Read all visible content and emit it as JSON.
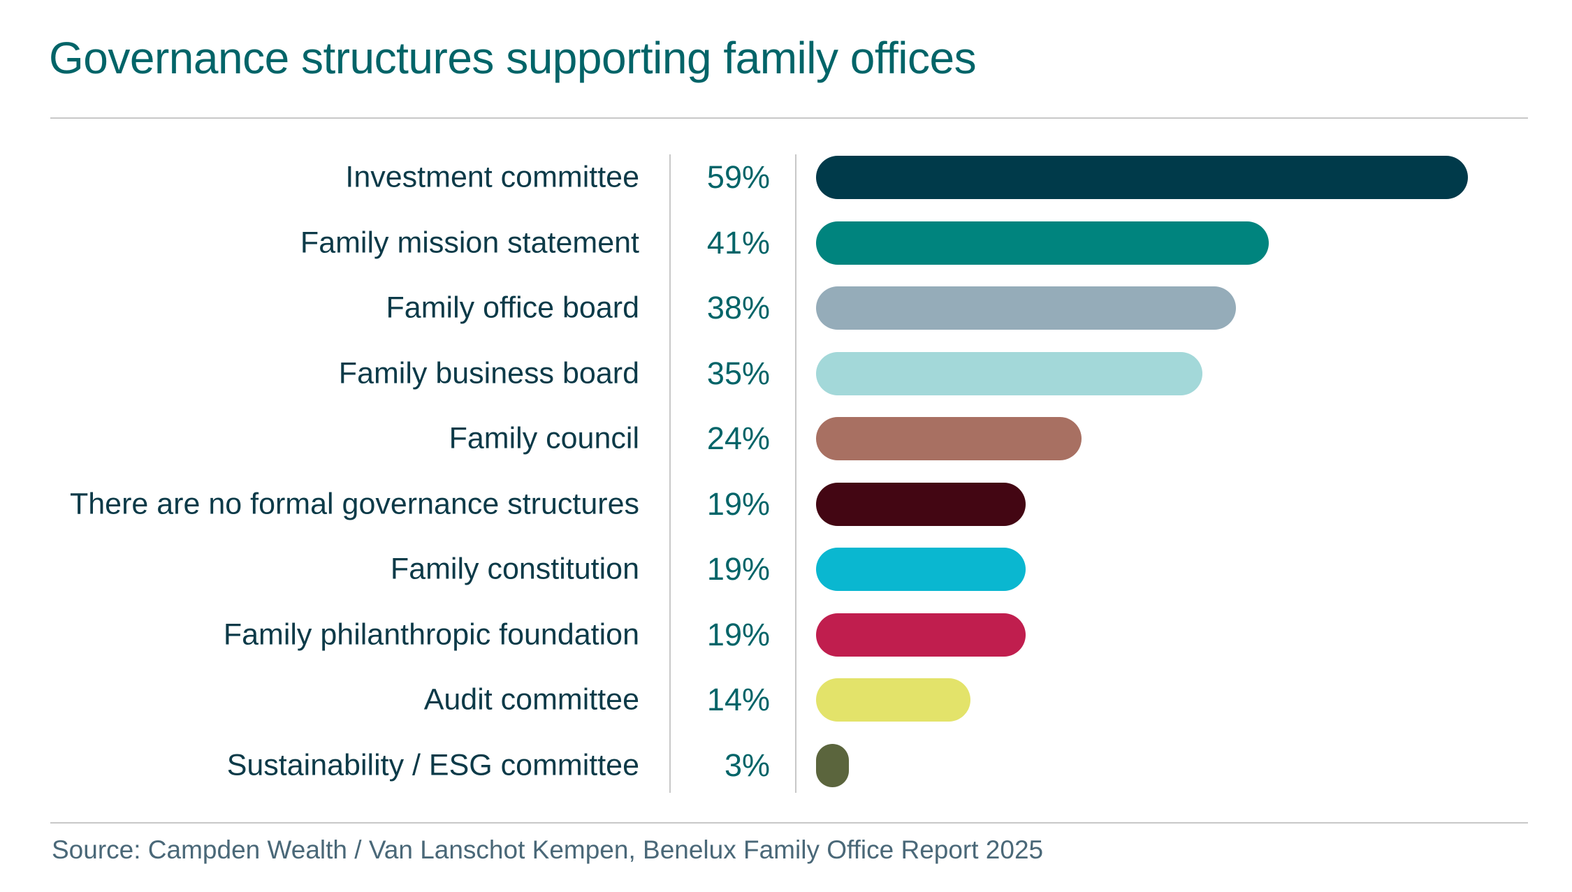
{
  "title": "Governance structures supporting family offices",
  "source": "Source: Campden Wealth / Van Lanschot Kempen, Benelux Family Office Report 2025",
  "chart_data": {
    "type": "bar",
    "orientation": "horizontal",
    "title": "Governance structures supporting family offices",
    "categories": [
      "Investment committee",
      "Family mission statement",
      "Family office board",
      "Family business board",
      "Family council",
      "There are no formal governance structures",
      "Family constitution",
      "Family philanthropic foundation",
      "Audit committee",
      "Sustainability / ESG committee"
    ],
    "values": [
      59,
      41,
      38,
      35,
      24,
      19,
      19,
      19,
      14,
      3
    ],
    "value_labels": [
      "59%",
      "41%",
      "38%",
      "35%",
      "24%",
      "19%",
      "19%",
      "19%",
      "14%",
      "3%"
    ],
    "colors": [
      "#003a4a",
      "#00847e",
      "#95acb9",
      "#a3d8d9",
      "#a87062",
      "#430613",
      "#0ab7d0",
      "#c01e4e",
      "#e3e36a",
      "#5b653d"
    ],
    "unit": "%",
    "grid": false
  }
}
